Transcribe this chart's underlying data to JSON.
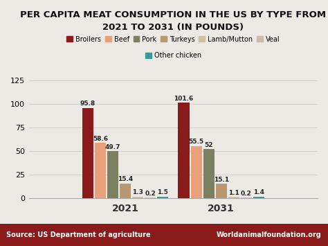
{
  "title": "PER CAPITA MEAT CONSUMPTION IN THE US BY TYPE FROM\n2021 TO 2031 (IN POUNDS)",
  "categories": [
    "2021",
    "2031"
  ],
  "series": [
    {
      "name": "Broilers",
      "values": [
        95.8,
        101.6
      ],
      "color": "#8B1A1A"
    },
    {
      "name": "Beef",
      "values": [
        58.6,
        55.5
      ],
      "color": "#E8A07A"
    },
    {
      "name": "Pork",
      "values": [
        49.7,
        52.0
      ],
      "color": "#7B8060"
    },
    {
      "name": "Turkeys",
      "values": [
        15.4,
        15.1
      ],
      "color": "#B89870"
    },
    {
      "name": "Lamb/Mutton",
      "values": [
        1.3,
        1.1
      ],
      "color": "#D0C0A0"
    },
    {
      "name": "Veal",
      "values": [
        0.2,
        0.2
      ],
      "color": "#C8BCAA"
    },
    {
      "name": "Other chicken",
      "values": [
        1.5,
        1.4
      ],
      "color": "#3A9A9A"
    }
  ],
  "ylim": [
    0,
    130
  ],
  "yticks": [
    0,
    25,
    50,
    75,
    100,
    125
  ],
  "bg_color": "#EDEAE6",
  "source_left": "Source: US Department of agriculture",
  "source_right": "Worldanimalfoundation.org",
  "footer_color": "#8B1A1A",
  "title_fontsize": 9.5,
  "legend_fontsize": 7,
  "value_fontsize": 6.5,
  "xtick_fontsize": 10
}
